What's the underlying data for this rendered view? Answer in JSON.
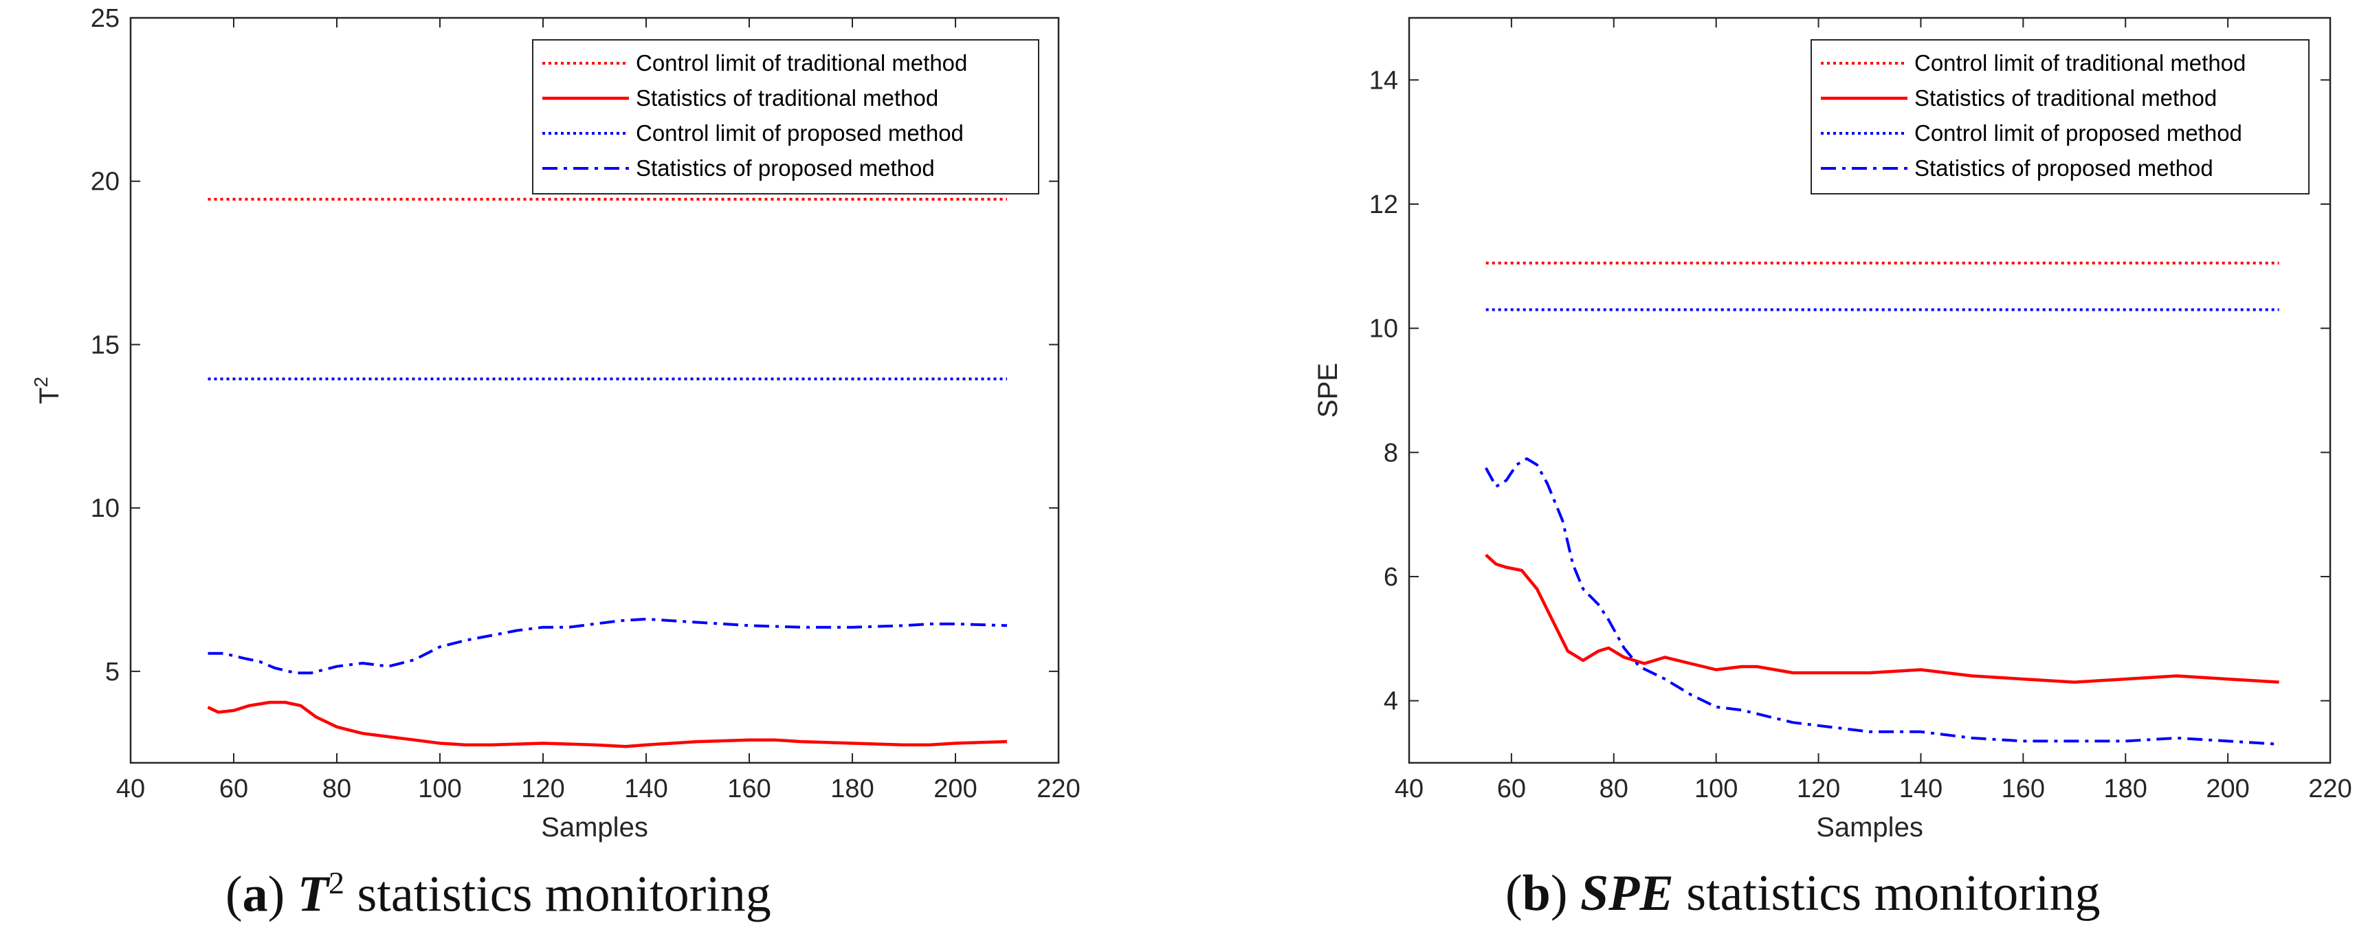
{
  "chart_data": [
    {
      "type": "line",
      "panel_label": "a",
      "caption_title": "T",
      "caption_superscript": "2",
      "caption_text": "statistics monitoring",
      "xlabel": "Samples",
      "ylabel": "T",
      "ylabel_superscript": "2",
      "xlim": [
        40,
        220
      ],
      "ylim": [
        2.2,
        25
      ],
      "xticks": [
        40,
        60,
        80,
        100,
        120,
        140,
        160,
        180,
        200,
        220
      ],
      "yticks": [
        5,
        10,
        15,
        20,
        25
      ],
      "legend_position": "top-right",
      "series": [
        {
          "name": "Control limit of traditional method",
          "color": "#ff0000",
          "style": "dotted",
          "x": [
            55,
            210
          ],
          "y": [
            19.45,
            19.45
          ]
        },
        {
          "name": "Statistics of traditional method",
          "color": "#ff0000",
          "style": "solid",
          "x": [
            55,
            57,
            60,
            63,
            67,
            70,
            73,
            76,
            80,
            85,
            90,
            95,
            100,
            105,
            110,
            120,
            130,
            136,
            140,
            150,
            160,
            165,
            170,
            180,
            190,
            195,
            200,
            210
          ],
          "y": [
            3.9,
            3.75,
            3.8,
            3.95,
            4.05,
            4.05,
            3.95,
            3.6,
            3.3,
            3.1,
            3.0,
            2.9,
            2.8,
            2.75,
            2.75,
            2.8,
            2.75,
            2.7,
            2.75,
            2.85,
            2.9,
            2.9,
            2.85,
            2.8,
            2.75,
            2.75,
            2.8,
            2.85
          ]
        },
        {
          "name": "Control limit of proposed method",
          "color": "#0000ff",
          "style": "dotted",
          "x": [
            55,
            210
          ],
          "y": [
            13.95,
            13.95
          ]
        },
        {
          "name": "Statistics of proposed method",
          "color": "#0000ff",
          "style": "dashdot",
          "x": [
            55,
            58,
            62,
            65,
            68,
            72,
            75,
            80,
            85,
            90,
            95,
            100,
            105,
            110,
            115,
            120,
            125,
            130,
            135,
            140,
            145,
            150,
            155,
            160,
            170,
            180,
            190,
            195,
            200,
            210
          ],
          "y": [
            5.55,
            5.55,
            5.4,
            5.3,
            5.1,
            4.95,
            4.95,
            5.15,
            5.25,
            5.15,
            5.35,
            5.75,
            5.95,
            6.1,
            6.25,
            6.35,
            6.35,
            6.45,
            6.55,
            6.6,
            6.55,
            6.5,
            6.45,
            6.4,
            6.35,
            6.35,
            6.4,
            6.45,
            6.45,
            6.4
          ]
        }
      ]
    },
    {
      "type": "line",
      "panel_label": "b",
      "caption_title": "SPE",
      "caption_superscript": "",
      "caption_text": "statistics monitoring",
      "xlabel": "Samples",
      "ylabel": "SPE",
      "ylabel_superscript": "",
      "xlim": [
        40,
        220
      ],
      "ylim": [
        3,
        15
      ],
      "xticks": [
        40,
        60,
        80,
        100,
        120,
        140,
        160,
        180,
        200,
        220
      ],
      "yticks": [
        4,
        6,
        8,
        10,
        12,
        14
      ],
      "legend_position": "top-right",
      "series": [
        {
          "name": "Control limit of traditional method",
          "color": "#ff0000",
          "style": "dotted",
          "x": [
            55,
            210
          ],
          "y": [
            11.05,
            11.05
          ]
        },
        {
          "name": "Statistics of traditional method",
          "color": "#ff0000",
          "style": "solid",
          "x": [
            55,
            57,
            59,
            62,
            65,
            68,
            71,
            74,
            77,
            79,
            82,
            86,
            90,
            95,
            100,
            105,
            108,
            115,
            120,
            130,
            140,
            150,
            160,
            170,
            180,
            190,
            200,
            210
          ],
          "y": [
            6.35,
            6.2,
            6.15,
            6.1,
            5.8,
            5.3,
            4.8,
            4.65,
            4.8,
            4.85,
            4.7,
            4.6,
            4.7,
            4.6,
            4.5,
            4.55,
            4.55,
            4.45,
            4.45,
            4.45,
            4.5,
            4.4,
            4.35,
            4.3,
            4.35,
            4.4,
            4.35,
            4.3
          ]
        },
        {
          "name": "Control limit of proposed method",
          "color": "#0000ff",
          "style": "dotted",
          "x": [
            55,
            210
          ],
          "y": [
            10.3,
            10.3
          ]
        },
        {
          "name": "Statistics of proposed method",
          "color": "#0000ff",
          "style": "dashdot",
          "x": [
            55,
            57,
            59,
            61,
            63,
            65,
            67,
            70,
            72,
            74,
            77,
            79,
            82,
            85,
            90,
            95,
            100,
            105,
            110,
            115,
            120,
            130,
            140,
            150,
            160,
            170,
            180,
            190,
            200,
            210
          ],
          "y": [
            7.75,
            7.45,
            7.55,
            7.8,
            7.9,
            7.8,
            7.5,
            6.9,
            6.2,
            5.8,
            5.55,
            5.3,
            4.85,
            4.55,
            4.35,
            4.1,
            3.9,
            3.85,
            3.75,
            3.65,
            3.6,
            3.5,
            3.5,
            3.4,
            3.35,
            3.35,
            3.35,
            3.4,
            3.35,
            3.3
          ]
        }
      ]
    }
  ]
}
